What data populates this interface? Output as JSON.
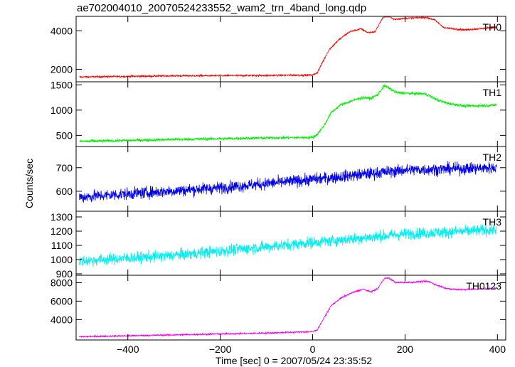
{
  "chart_data": {
    "type": "line",
    "title": "ae702004010_20070524233552_wam2_trn_4band_long.qdp",
    "xlabel": "Time [sec] 0 = 2007/05/24 23:35:52",
    "ylabel": "Counts/sec",
    "xlim": [
      -512,
      418
    ],
    "x_ticks": [
      -400,
      -200,
      0,
      200,
      400
    ],
    "x_tick_labels": [
      "−400",
      "−200",
      "0",
      "200",
      "400"
    ],
    "grid": false,
    "panels": [
      {
        "name": "TH0",
        "color": "#ff0000",
        "ylim": [
          1350,
          4750
        ],
        "y_ticks": [
          2000,
          4000
        ],
        "y_tick_labels": [
          "2000",
          "4000"
        ],
        "trend": [
          [
            -505,
            1600
          ],
          [
            -300,
            1660
          ],
          [
            -100,
            1680
          ],
          [
            0,
            1700
          ],
          [
            10,
            1820
          ],
          [
            20,
            2300
          ],
          [
            35,
            3000
          ],
          [
            55,
            3500
          ],
          [
            80,
            3950
          ],
          [
            105,
            4100
          ],
          [
            120,
            3900
          ],
          [
            135,
            3950
          ],
          [
            150,
            4600
          ],
          [
            160,
            4850
          ],
          [
            175,
            4600
          ],
          [
            205,
            4650
          ],
          [
            245,
            4700
          ],
          [
            265,
            4550
          ],
          [
            285,
            4150
          ],
          [
            330,
            4050
          ],
          [
            398,
            4180
          ]
        ],
        "noise": 45
      },
      {
        "name": "TH1",
        "color": "#00ee00",
        "ylim": [
          280,
          1560
        ],
        "y_ticks": [
          500,
          1000,
          1500
        ],
        "y_tick_labels": [
          "500",
          "1000",
          "1500"
        ],
        "trend": [
          [
            -505,
            380
          ],
          [
            -300,
            420
          ],
          [
            -100,
            450
          ],
          [
            0,
            460
          ],
          [
            10,
            520
          ],
          [
            25,
            700
          ],
          [
            40,
            950
          ],
          [
            60,
            1100
          ],
          [
            90,
            1200
          ],
          [
            110,
            1250
          ],
          [
            125,
            1230
          ],
          [
            140,
            1300
          ],
          [
            155,
            1480
          ],
          [
            165,
            1440
          ],
          [
            180,
            1350
          ],
          [
            210,
            1330
          ],
          [
            245,
            1320
          ],
          [
            270,
            1200
          ],
          [
            290,
            1140
          ],
          [
            330,
            1080
          ],
          [
            398,
            1100
          ]
        ],
        "noise": 28
      },
      {
        "name": "TH2",
        "color": "#0000ee",
        "ylim": [
          515,
          790
        ],
        "y_ticks": [
          600,
          700
        ],
        "y_tick_labels": [
          "600",
          "700"
        ],
        "trend": [
          [
            -505,
            575
          ],
          [
            -200,
            615
          ],
          [
            0,
            650
          ],
          [
            200,
            690
          ],
          [
            398,
            700
          ]
        ],
        "noise": 24
      },
      {
        "name": "TH3",
        "color": "#00eeee",
        "ylim": [
          890,
          1340
        ],
        "y_ticks": [
          900,
          1000,
          1100,
          1200,
          1300
        ],
        "y_tick_labels": [
          "900",
          "1000",
          "1100",
          "1200",
          "1300"
        ],
        "trend": [
          [
            -505,
            990
          ],
          [
            -300,
            1030
          ],
          [
            -100,
            1090
          ],
          [
            0,
            1120
          ],
          [
            200,
            1180
          ],
          [
            398,
            1210
          ]
        ],
        "noise": 38
      },
      {
        "name": "TH0123",
        "color": "#ee00ee",
        "ylim": [
          1800,
          8800
        ],
        "y_ticks": [
          4000,
          6000,
          8000
        ],
        "y_tick_labels": [
          "4000",
          "6000",
          "8000"
        ],
        "trend": [
          [
            -505,
            2150
          ],
          [
            -300,
            2350
          ],
          [
            -100,
            2550
          ],
          [
            0,
            2700
          ],
          [
            10,
            2900
          ],
          [
            25,
            4200
          ],
          [
            40,
            5500
          ],
          [
            60,
            6300
          ],
          [
            85,
            6900
          ],
          [
            110,
            7300
          ],
          [
            125,
            7000
          ],
          [
            140,
            7300
          ],
          [
            155,
            8450
          ],
          [
            165,
            8500
          ],
          [
            180,
            8000
          ],
          [
            215,
            8050
          ],
          [
            250,
            8150
          ],
          [
            270,
            7700
          ],
          [
            295,
            7300
          ],
          [
            330,
            7250
          ],
          [
            398,
            7400
          ]
        ],
        "noise": 85
      }
    ]
  }
}
